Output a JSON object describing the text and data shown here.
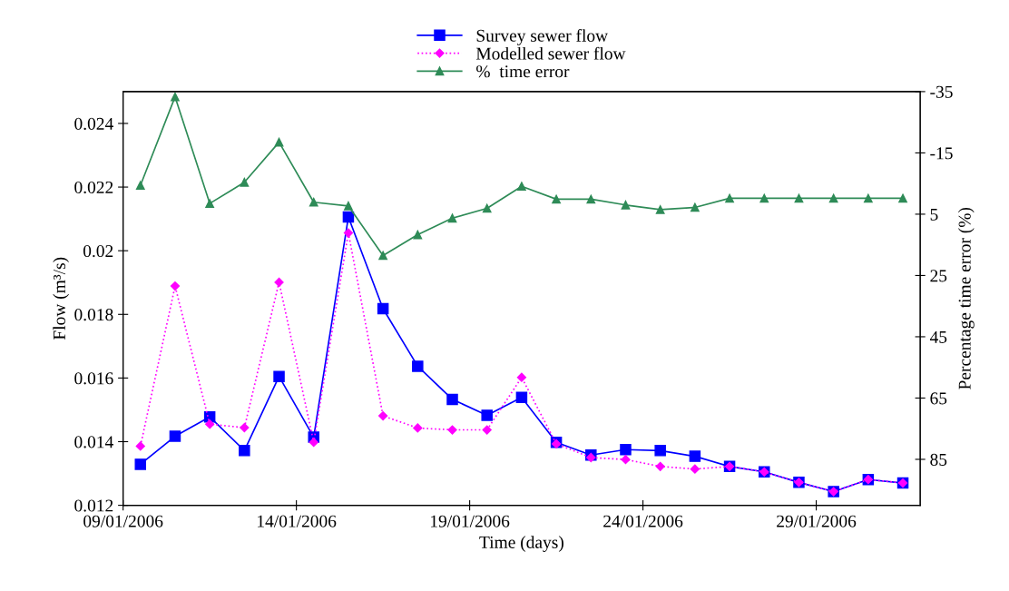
{
  "chart_data": {
    "type": "line",
    "xlabel": "Time (days)",
    "ylabel": "Flow (m³/s)",
    "y2label": "Percentage time error (%)",
    "x": [
      "2006-01-09T12:00",
      "2006-01-10T12:00",
      "2006-01-11T12:00",
      "2006-01-12T12:00",
      "2006-01-13T12:00",
      "2006-01-14T12:00",
      "2006-01-15T12:00",
      "2006-01-16T12:00",
      "2006-01-17T12:00",
      "2006-01-18T12:00",
      "2006-01-19T12:00",
      "2006-01-20T12:00",
      "2006-01-21T12:00",
      "2006-01-22T12:00",
      "2006-01-23T12:00",
      "2006-01-24T12:00",
      "2006-01-25T12:00",
      "2006-01-26T12:00",
      "2006-01-27T12:00",
      "2006-01-28T12:00",
      "2006-01-29T12:00",
      "2006-01-30T12:00",
      "2006-01-31T12:00"
    ],
    "series": [
      {
        "name": "Survey sewer flow",
        "color": "#0000ff",
        "marker": "square",
        "line_style": "solid",
        "values": [
          0.01329,
          0.01417,
          0.01478,
          0.01372,
          0.01605,
          0.01414,
          0.02106,
          0.01818,
          0.01637,
          0.01533,
          0.01483,
          0.01539,
          0.01398,
          0.01358,
          0.01375,
          0.01372,
          0.01354,
          0.01322,
          0.01305,
          0.01272,
          0.01243,
          0.01281,
          0.0127
        ]
      },
      {
        "name": "Modelled sewer flow",
        "color": "#ff00ff",
        "marker": "diamond",
        "line_style": "dotted",
        "values": [
          0.01386,
          0.01889,
          0.01455,
          0.01444,
          0.01901,
          0.01398,
          0.02056,
          0.01481,
          0.01443,
          0.01437,
          0.01437,
          0.01602,
          0.01393,
          0.0135,
          0.01344,
          0.01322,
          0.01314,
          0.01322,
          0.01305,
          0.01272,
          0.01243,
          0.01281,
          0.0127
        ]
      },
      {
        "name": "%  time error",
        "color": "#2e8b57",
        "marker": "triangle",
        "line_style": "solid",
        "axis": "y2",
        "values": [
          -4.4,
          -33.3,
          1.5,
          -5.4,
          -18.5,
          1.1,
          2.3,
          18.5,
          11.7,
          6.3,
          3.1,
          -4.1,
          0.1,
          0.1,
          2.0,
          3.5,
          2.8,
          -0.2,
          -0.2,
          -0.2,
          -0.2,
          -0.2,
          -0.2
        ]
      }
    ],
    "xlim": [
      "2006-01-09",
      "2006-02-01"
    ],
    "xticks": [
      {
        "value": "2006-01-09",
        "label": "09/01/2006"
      },
      {
        "value": "2006-01-14",
        "label": "14/01/2006"
      },
      {
        "value": "2006-01-19",
        "label": "19/01/2006"
      },
      {
        "value": "2006-01-24",
        "label": "24/01/2006"
      },
      {
        "value": "2006-01-29",
        "label": "29/01/2006"
      }
    ],
    "ylim": [
      0.012,
      0.025
    ],
    "yticks": [
      0.012,
      0.014,
      0.016,
      0.018,
      0.02,
      0.022,
      0.024
    ],
    "y2lim": [
      100,
      -35
    ],
    "y2ticks": [
      -35,
      -15,
      5,
      25,
      45,
      65,
      85
    ],
    "grid": false,
    "legend": "top"
  }
}
